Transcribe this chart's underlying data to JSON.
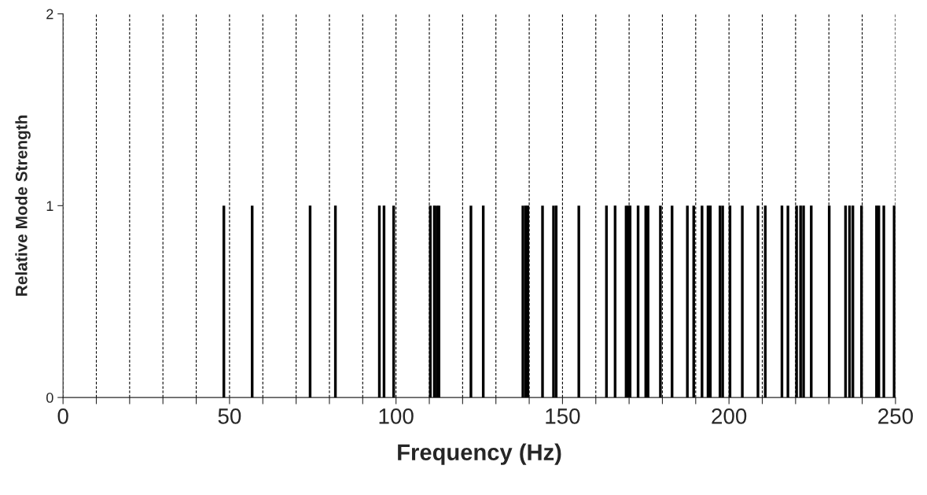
{
  "chart_data": {
    "type": "bar",
    "xlabel": "Frequency (Hz)",
    "ylabel": "Relative Mode Strength",
    "color": "#000000",
    "x": [
      48.3,
      56.8,
      74.2,
      81.8,
      95.0,
      96.4,
      99.3,
      110.3,
      111.5,
      112.3,
      112.9,
      122.5,
      126.2,
      138.1,
      138.9,
      139.6,
      144.0,
      147.3,
      148.1,
      154.9,
      163.2,
      165.8,
      169.1,
      169.7,
      170.3,
      172.7,
      175.0,
      175.7,
      179.4,
      182.9,
      187.5,
      189.4,
      191.9,
      193.7,
      194.4,
      197.3,
      198.1,
      200.3,
      204.0,
      208.7,
      210.9,
      215.9,
      217.7,
      220.3,
      221.5,
      222.4,
      224.7,
      230.1,
      235.0,
      236.2,
      237.2,
      239.8,
      244.3,
      245.0,
      246.5,
      249.6
    ],
    "values": [
      1,
      1,
      1,
      1,
      1,
      1,
      1,
      1,
      1,
      1,
      1,
      1,
      1,
      1,
      1,
      1,
      1,
      1,
      1,
      1,
      1,
      1,
      1,
      1,
      1,
      1,
      1,
      1,
      1,
      1,
      1,
      1,
      1,
      1,
      1,
      1,
      1,
      1,
      1,
      1,
      1,
      1,
      1,
      1,
      1,
      1,
      1,
      1,
      1,
      1,
      1,
      1,
      1,
      1,
      1,
      1
    ],
    "xlim": [
      0,
      250
    ],
    "ylim": [
      0,
      2
    ],
    "xticks": [
      0,
      {
        "value": 10,
        "label": null
      },
      {
        "value": 20,
        "label": null
      },
      {
        "value": 30,
        "label": null
      },
      {
        "value": 40,
        "label": null
      },
      50,
      {
        "value": 60,
        "label": null
      },
      {
        "value": 70,
        "label": null
      },
      {
        "value": 80,
        "label": null
      },
      {
        "value": 90,
        "label": null
      },
      100,
      {
        "value": 110,
        "label": null
      },
      {
        "value": 120,
        "label": null
      },
      {
        "value": 130,
        "label": null
      },
      {
        "value": 140,
        "label": null
      },
      150,
      {
        "value": 160,
        "label": null
      },
      {
        "value": 170,
        "label": null
      },
      {
        "value": 180,
        "label": null
      },
      {
        "value": 190,
        "label": null
      },
      200,
      {
        "value": 210,
        "label": null
      },
      {
        "value": 220,
        "label": null
      },
      {
        "value": 230,
        "label": null
      },
      {
        "value": 240,
        "label": null
      },
      250
    ],
    "yticks": [
      0,
      1,
      2
    ],
    "grid": "x",
    "legend": false
  }
}
